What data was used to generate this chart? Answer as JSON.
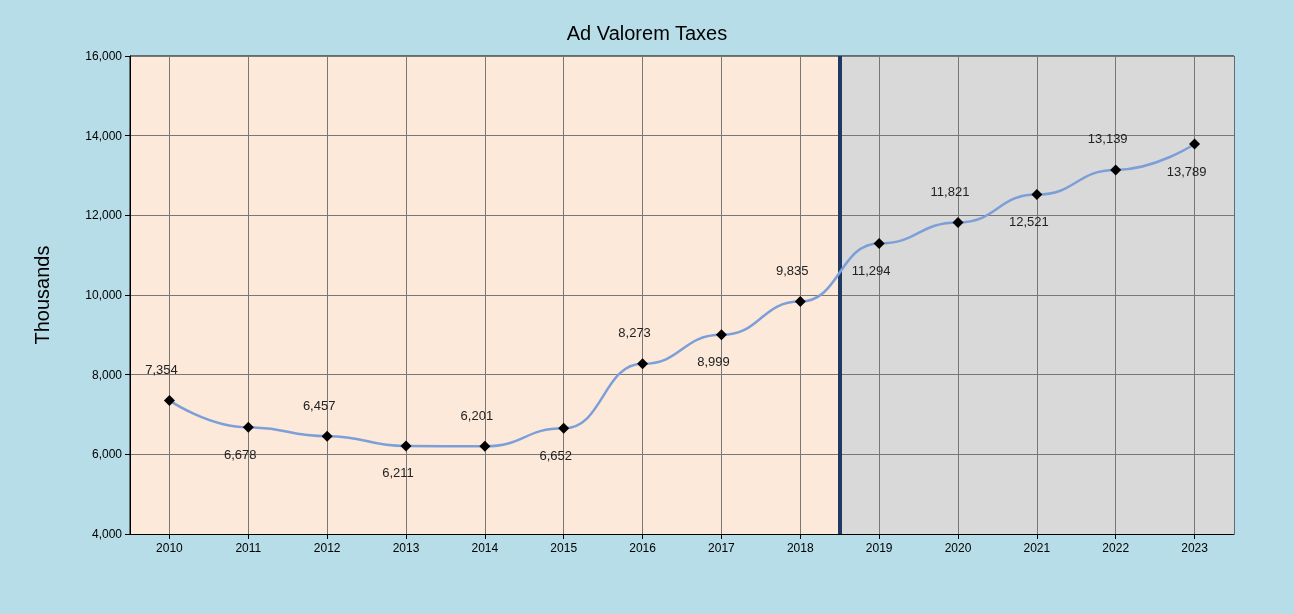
{
  "chart_data": {
    "type": "line",
    "title": "Ad Valorem Taxes",
    "ylabel": "Thousands",
    "x": [
      2010,
      2011,
      2012,
      2013,
      2014,
      2015,
      2016,
      2017,
      2018,
      2019,
      2020,
      2021,
      2022,
      2023
    ],
    "series": [
      {
        "color": "#7c9fd8",
        "values": [
          7354,
          6678,
          6457,
          6211,
          6201,
          6652,
          8273,
          8999,
          9835,
          11294,
          11821,
          12521,
          13139,
          13789
        ],
        "value_labels": [
          "7,354",
          "6,678",
          "6,457",
          "6,211",
          "6,201",
          "6,652",
          "8,273",
          "8,999",
          "9,835",
          "11,294",
          "11,821",
          "12,521",
          "13,139",
          "13,789"
        ]
      }
    ],
    "xlim": [
      2009.5,
      2023.5
    ],
    "xticks": [
      2010,
      2011,
      2012,
      2013,
      2014,
      2015,
      2016,
      2017,
      2018,
      2019,
      2020,
      2021,
      2022,
      2023
    ],
    "ylim": [
      4000,
      16000
    ],
    "yticks": [
      {
        "value": 4000,
        "label": "4,000"
      },
      {
        "value": 6000,
        "label": "6,000"
      },
      {
        "value": 8000,
        "label": "8,000"
      },
      {
        "value": 10000,
        "label": "10,000"
      },
      {
        "value": 12000,
        "label": "12,000"
      },
      {
        "value": 14000,
        "label": "14,000"
      },
      {
        "value": 16000,
        "label": "16,000"
      }
    ],
    "bands": [
      {
        "axis": "x",
        "from": 2009.5,
        "to": 2018.5,
        "color": "#fce9da"
      },
      {
        "axis": "x",
        "from": 2018.5,
        "to": 2023.5,
        "color": "#d9d9d9"
      }
    ],
    "ref_lines": [
      {
        "axis": "x",
        "value": 2018.5,
        "color": "#1f3864",
        "line_style": "solid"
      }
    ],
    "grid": true,
    "marker": "diamond",
    "line_style": "solid"
  }
}
